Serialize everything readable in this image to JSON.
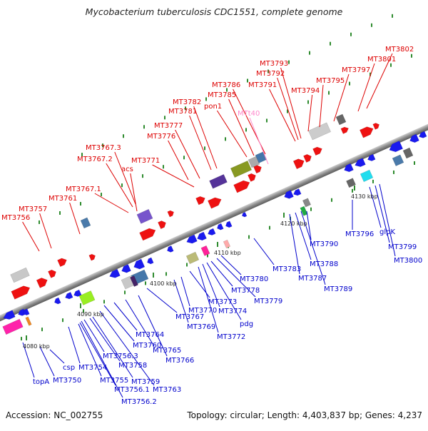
{
  "title": "Mycobacterium tuberculosis CDC1551, complete genome",
  "footer": {
    "accession": "Accession: NC_002755",
    "summary": "Topology: circular; Length: 4,403,837 bp; Genes: 4,237"
  },
  "colors": {
    "forward_label": "#dd0000",
    "reverse_label": "#0000cc",
    "trna_label": "#ff88cc",
    "backbone": "#888888"
  },
  "scale_labels": [
    "4080 kbp",
    "4090 kbp",
    "4100 kbp",
    "4110 kbp",
    "4120 kbp",
    "4130 kbp"
  ],
  "forward_labels": [
    "MT3756",
    "MT3757",
    "MT3761",
    "MT3767.1",
    "acs",
    "MT3767.2",
    "MT3767.3",
    "MT3771",
    "MT3776",
    "MT3777",
    "MT3781",
    "MT3782",
    "pon1",
    "MT3785",
    "MT3786",
    "MT3791",
    "MT3792",
    "MT3793",
    "MT3794",
    "MT3795",
    "MT3797",
    "MT3801",
    "MT3802"
  ],
  "trna_labels": [
    "MTt40"
  ],
  "reverse_labels": [
    "topA",
    "csp",
    "MT3750",
    "MT3754",
    "MT3755",
    "MT3756.1",
    "MT3756.2",
    "MT3756.3",
    "MT3758",
    "MT3759",
    "MT3760",
    "MT3763",
    "MT3764",
    "MT3765",
    "MT3766",
    "MT3767",
    "MT3769",
    "MT3770",
    "MT3772",
    "MT3773",
    "MT3774",
    "pdg",
    "MT3778",
    "MT3779",
    "MT3780",
    "MT3783",
    "MT3787",
    "MT3788",
    "MT3789",
    "MT3790",
    "MT3796",
    "glpK",
    "MT3799",
    "MT3800"
  ]
}
